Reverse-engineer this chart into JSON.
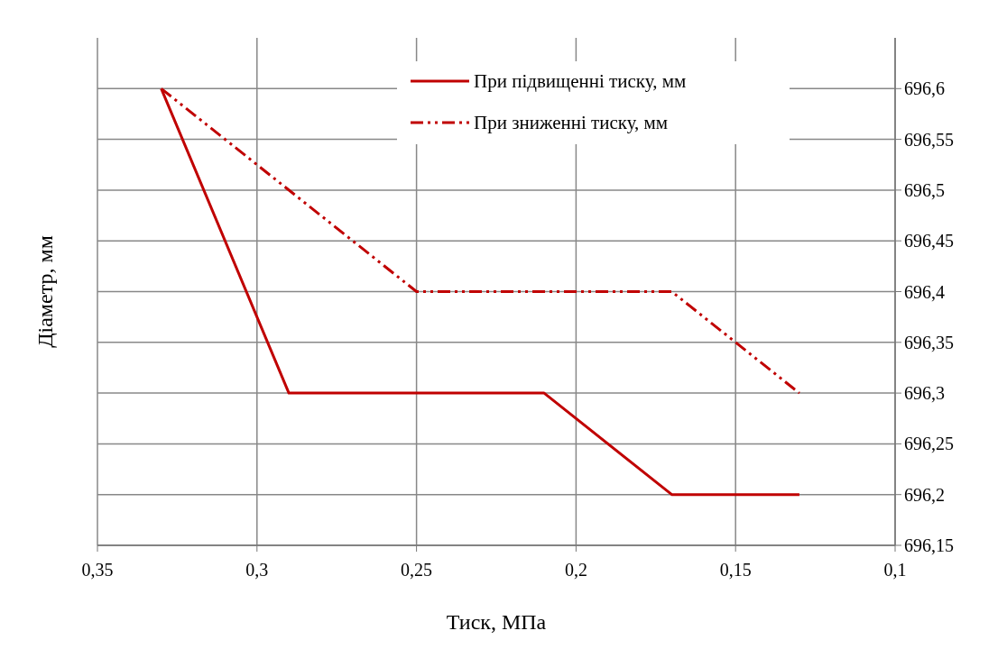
{
  "chart_data": {
    "type": "line",
    "xlabel": "Тиск, МПа",
    "ylabel": "Діаметр, мм",
    "xlim": [
      0.35,
      0.1
    ],
    "xticks": [
      {
        "value": 0.35,
        "label": "0,35"
      },
      {
        "value": 0.3,
        "label": "0,3"
      },
      {
        "value": 0.25,
        "label": "0,25"
      },
      {
        "value": 0.2,
        "label": "0,2"
      },
      {
        "value": 0.15,
        "label": "0,15"
      },
      {
        "value": 0.1,
        "label": "0,1"
      }
    ],
    "ylim": [
      696.15,
      696.65
    ],
    "yticks": [
      {
        "value": 696.15,
        "label": "696,15"
      },
      {
        "value": 696.2,
        "label": "696,2"
      },
      {
        "value": 696.25,
        "label": "696,25"
      },
      {
        "value": 696.3,
        "label": "696,3"
      },
      {
        "value": 696.35,
        "label": "696,35"
      },
      {
        "value": 696.4,
        "label": "696,4"
      },
      {
        "value": 696.45,
        "label": "696,45"
      },
      {
        "value": 696.5,
        "label": "696,5"
      },
      {
        "value": 696.55,
        "label": "696,55"
      },
      {
        "value": 696.6,
        "label": "696,6"
      }
    ],
    "grid": true,
    "legend": "top right",
    "series": [
      {
        "name": "При підвищенні тиску, мм",
        "color": "#c00000",
        "line_style": "solid",
        "x": [
          0.33,
          0.29,
          0.21,
          0.17,
          0.13
        ],
        "values": [
          696.6,
          696.3,
          696.3,
          696.2,
          696.2
        ]
      },
      {
        "name": "При зниженні тиску, мм",
        "color": "#c00000",
        "line_style": "dashed",
        "x": [
          0.33,
          0.25,
          0.17,
          0.13
        ],
        "values": [
          696.6,
          696.4,
          696.4,
          696.3
        ]
      }
    ]
  }
}
